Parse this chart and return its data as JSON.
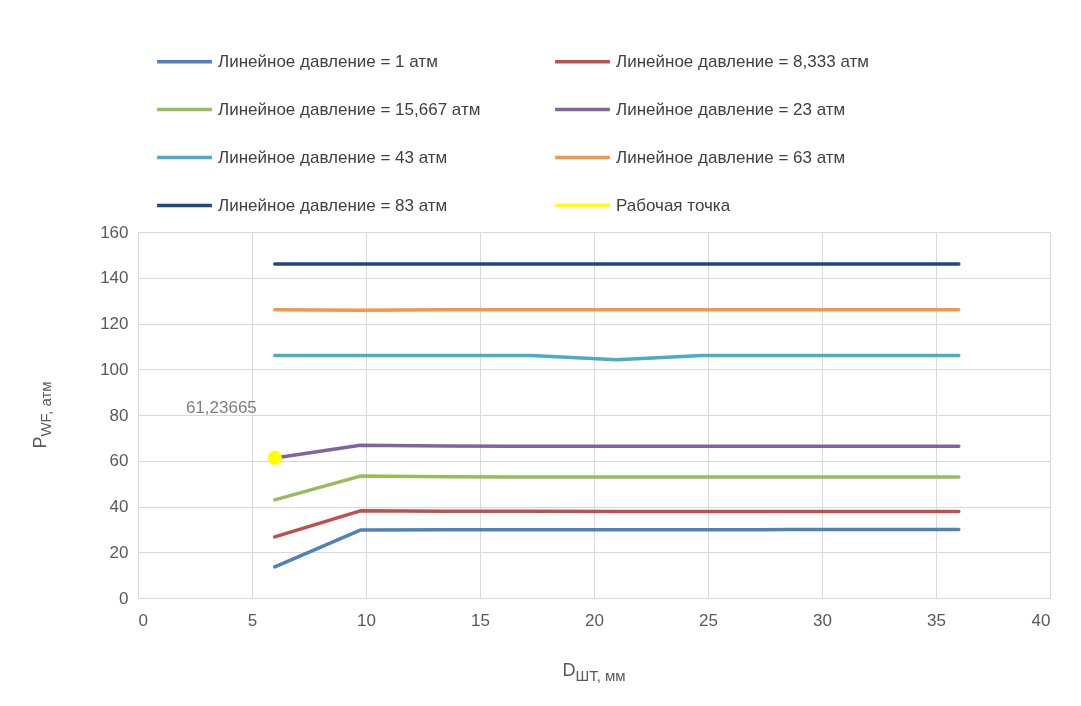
{
  "chart_data": {
    "type": "line",
    "xlabel": "D$_{ШТ, мм}$",
    "ylabel": "P$_{WF, атм}$",
    "x": [
      6,
      9.75,
      13.5,
      17.25,
      21,
      24.75,
      28.5,
      32.25,
      36
    ],
    "series": [
      {
        "name": "Линейное давление = 1 атм",
        "color": "#4f81bd",
        "values": [
          13.6,
          29.7,
          29.8,
          29.8,
          29.8,
          29.8,
          29.9,
          29.9,
          29.9
        ]
      },
      {
        "name": "Линейное давление = 8,333 атм",
        "color": "#c0504d",
        "values": [
          26.7,
          38.1,
          37.9,
          37.9,
          37.8,
          37.8,
          37.8,
          37.8,
          37.8
        ]
      },
      {
        "name": "Линейное давление = 15,667 атм",
        "color": "#9bbb59",
        "values": [
          42.9,
          53.3,
          53,
          52.9,
          52.9,
          52.9,
          52.9,
          52.9,
          52.9
        ]
      },
      {
        "name": "Линейное давление = 23 атм",
        "color": "#8064a2",
        "values": [
          61.2,
          66.8,
          66.4,
          66.3,
          66.3,
          66.3,
          66.3,
          66.3,
          66.3
        ]
      },
      {
        "name": "Линейное давление = 43 атм",
        "color": "#4bacc6",
        "values": [
          106,
          106,
          106,
          106,
          104.2,
          106,
          106,
          106,
          106
        ]
      },
      {
        "name": "Линейное давление = 63 атм",
        "color": "#f79646",
        "values": [
          126,
          125.8,
          126,
          126,
          126,
          126,
          126,
          126,
          126
        ]
      },
      {
        "name": "Линейное давление = 83 атм",
        "color": "#1f497d",
        "values": [
          146,
          146,
          146,
          146,
          146,
          146,
          146,
          146,
          146
        ]
      },
      {
        "name": "Рабочая точка",
        "type": "scatter",
        "color": "#ffff00",
        "x": [
          6
        ],
        "values": [
          61.23665
        ]
      }
    ],
    "annotations": [
      {
        "text": "61,23665",
        "x": 6,
        "y": 61.23665
      }
    ],
    "xlim": [
      0,
      40
    ],
    "xticks": [
      0,
      5,
      10,
      15,
      20,
      25,
      30,
      35,
      40
    ],
    "ylim": [
      0,
      160
    ],
    "yticks": [
      0,
      20,
      40,
      60,
      80,
      100,
      120,
      140,
      160
    ],
    "grid": true,
    "legend": "top"
  }
}
